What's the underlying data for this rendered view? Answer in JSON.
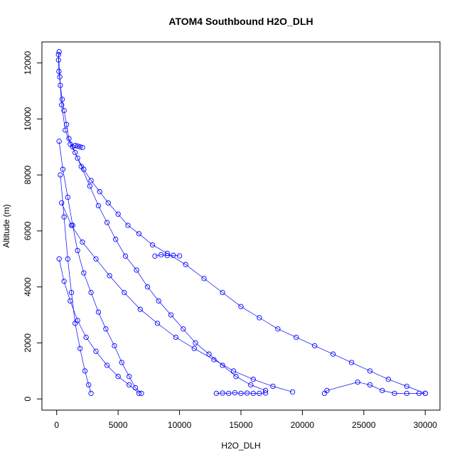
{
  "chart_data": {
    "type": "scatter",
    "title": "ATOM4 Southbound H2O_DLH",
    "xlabel": "H2O_DLH",
    "ylabel": "Altitude (m)",
    "xlim": [
      -1200,
      31200
    ],
    "ylim": [
      -400,
      12750
    ],
    "x_ticks": [
      0,
      5000,
      10000,
      15000,
      20000,
      25000,
      30000
    ],
    "x_tick_labels": [
      "0",
      "5000",
      "10000",
      "15000",
      "20000",
      "25000",
      "30000"
    ],
    "y_ticks": [
      0,
      2000,
      4000,
      6000,
      8000,
      10000,
      12000
    ],
    "y_tick_labels": [
      "0",
      "2000",
      "4000",
      "6000",
      "8000",
      "10000",
      "12000"
    ],
    "grid": false,
    "legend": "none",
    "marker": "open-circle",
    "lines_connecting": true,
    "color": "#0000ff",
    "series": [
      {
        "values": [
          [
            200,
            12400
          ],
          [
            150,
            12100
          ],
          [
            180,
            11700
          ],
          [
            300,
            11200
          ],
          [
            450,
            10700
          ],
          [
            600,
            10300
          ],
          [
            800,
            9800
          ],
          [
            1000,
            9300
          ],
          [
            1300,
            9000
          ],
          [
            1700,
            8600
          ],
          [
            2200,
            8200
          ],
          [
            2800,
            7800
          ],
          [
            3500,
            7400
          ],
          [
            4200,
            7000
          ],
          [
            5000,
            6600
          ],
          [
            5800,
            6200
          ],
          [
            6700,
            5900
          ],
          [
            7800,
            5500
          ],
          [
            9000,
            5200
          ],
          [
            10500,
            4800
          ],
          [
            12000,
            4300
          ],
          [
            13500,
            3800
          ],
          [
            15000,
            3300
          ],
          [
            16500,
            2900
          ],
          [
            18000,
            2500
          ],
          [
            19500,
            2200
          ],
          [
            21000,
            1900
          ],
          [
            22500,
            1600
          ],
          [
            24000,
            1300
          ],
          [
            25500,
            1000
          ],
          [
            27000,
            700
          ],
          [
            28500,
            450
          ],
          [
            30000,
            200
          ]
        ]
      },
      {
        "values": [
          [
            150,
            12300
          ],
          [
            250,
            11500
          ],
          [
            400,
            10500
          ],
          [
            700,
            9600
          ],
          [
            1100,
            9100
          ],
          [
            1500,
            8800
          ],
          [
            2000,
            8300
          ],
          [
            2700,
            7600
          ],
          [
            3400,
            6900
          ],
          [
            4100,
            6300
          ],
          [
            4800,
            5700
          ],
          [
            5600,
            5100
          ],
          [
            6500,
            4600
          ],
          [
            7400,
            4000
          ],
          [
            8300,
            3500
          ],
          [
            9300,
            3000
          ],
          [
            10300,
            2500
          ],
          [
            11300,
            2000
          ],
          [
            12400,
            1600
          ],
          [
            13500,
            1200
          ],
          [
            14600,
            800
          ],
          [
            15800,
            500
          ],
          [
            17000,
            300
          ]
        ]
      },
      {
        "values": [
          [
            200,
            9200
          ],
          [
            500,
            8200
          ],
          [
            900,
            7200
          ],
          [
            1300,
            6200
          ],
          [
            1700,
            5300
          ],
          [
            2200,
            4500
          ],
          [
            2800,
            3800
          ],
          [
            3400,
            3100
          ],
          [
            4000,
            2500
          ],
          [
            4700,
            1900
          ],
          [
            5300,
            1300
          ],
          [
            5900,
            800
          ],
          [
            6400,
            400
          ],
          [
            6900,
            200
          ]
        ]
      },
      {
        "values": [
          [
            300,
            8000
          ],
          [
            600,
            6500
          ],
          [
            900,
            5000
          ],
          [
            1200,
            3800
          ],
          [
            1500,
            2700
          ],
          [
            1900,
            1800
          ],
          [
            2300,
            1000
          ],
          [
            2600,
            500
          ],
          [
            2800,
            200
          ]
        ]
      },
      {
        "values": [
          [
            400,
            7000
          ],
          [
            1200,
            6200
          ],
          [
            2100,
            5600
          ],
          [
            3200,
            5000
          ],
          [
            4300,
            4400
          ],
          [
            5500,
            3800
          ],
          [
            6800,
            3200
          ],
          [
            8200,
            2700
          ],
          [
            9700,
            2200
          ],
          [
            11200,
            1800
          ],
          [
            12800,
            1400
          ],
          [
            14400,
            1000
          ],
          [
            16000,
            700
          ],
          [
            17600,
            450
          ],
          [
            19200,
            250
          ]
        ]
      },
      {
        "values": [
          [
            200,
            5000
          ],
          [
            600,
            4200
          ],
          [
            1100,
            3500
          ],
          [
            1700,
            2800
          ],
          [
            2400,
            2200
          ],
          [
            3200,
            1700
          ],
          [
            4100,
            1200
          ],
          [
            5000,
            800
          ],
          [
            5900,
            500
          ],
          [
            6700,
            200
          ]
        ]
      },
      {
        "values": [
          [
            21800,
            200
          ],
          [
            22000,
            300
          ],
          [
            24500,
            600
          ],
          [
            25500,
            500
          ],
          [
            26500,
            300
          ],
          [
            27500,
            200
          ],
          [
            28500,
            200
          ],
          [
            29500,
            200
          ],
          [
            30000,
            200
          ]
        ]
      },
      {
        "values": [
          [
            8000,
            5100
          ],
          [
            8500,
            5150
          ],
          [
            9000,
            5120
          ],
          [
            9500,
            5130
          ],
          [
            10000,
            5110
          ]
        ]
      },
      {
        "values": [
          [
            1500,
            9050
          ],
          [
            1700,
            9030
          ],
          [
            1900,
            9000
          ],
          [
            2100,
            8980
          ]
        ]
      },
      {
        "values": [
          [
            13000,
            200
          ],
          [
            13500,
            210
          ],
          [
            14000,
            200
          ],
          [
            14500,
            220
          ],
          [
            15000,
            200
          ],
          [
            15500,
            210
          ],
          [
            16000,
            200
          ],
          [
            16500,
            200
          ],
          [
            17000,
            210
          ]
        ]
      }
    ]
  }
}
